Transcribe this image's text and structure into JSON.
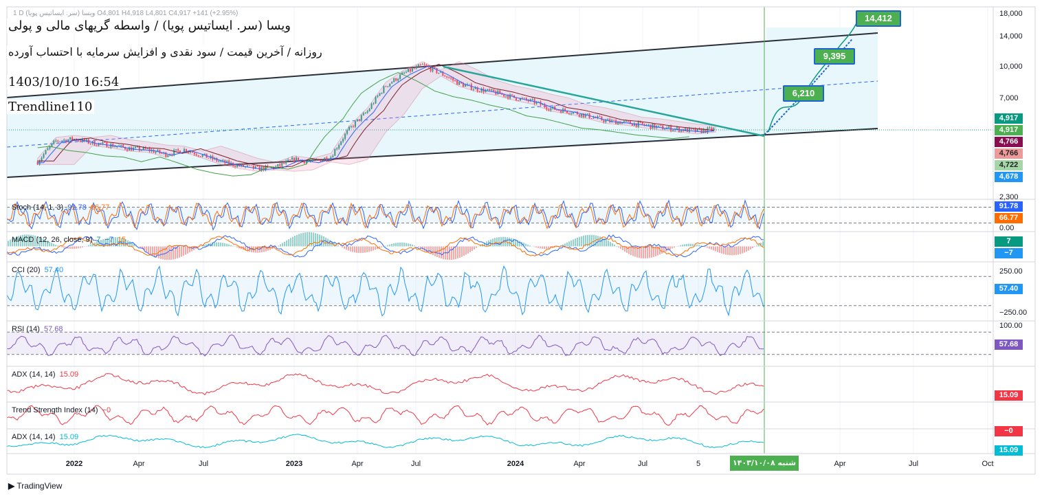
{
  "header": {
    "symbol_row": "1  D  ویسا (سر. ایساتیس پویا)  O4,801  H4,918  L4,801  C4,917  +141 (+2.95%)",
    "title_fa": "ویسا (سر. ایساتیس پویا) / واسطه گریهای مالی و پولی",
    "subtitle_fa": "روزانه / آخرین قیمت / سود نقدی و افزایش سرمایه با احتساب آورده",
    "datetime": "1403/10/10 16:54",
    "signature": "Trendline110"
  },
  "colors": {
    "channel_fill": "#e8f7fb",
    "candle_up": "#089981",
    "candle_down": "#f23645",
    "trendline": "#26a69a",
    "ma": "#7b1f2a",
    "stoch_k": "#2962ff",
    "stoch_d": "#ff6d00",
    "cci": "#2196f3",
    "rsi": "#7e57c2",
    "adx": "#f23645",
    "adx2": "#00bcd4"
  },
  "chart_data": [
    {
      "type": "candlestick",
      "pane": "price",
      "x_ticks": [
        "2022",
        "Apr",
        "Jul",
        "2023",
        "Apr",
        "Jul",
        "2024",
        "Apr",
        "Jul",
        "5",
        "Apr",
        "Jul",
        "Oct"
      ],
      "current_date_label": "شنبه ۱۴۰۳/۱۰/۰۸",
      "y_ticks": [
        2300,
        7000,
        10000,
        14000,
        18000
      ],
      "y_ticks_text": [
        "2,300",
        "7,000",
        "10,000",
        "14,000",
        "18,000"
      ],
      "last_close": 4917,
      "ohlc_last": {
        "open": 4801,
        "high": 4918,
        "low": 4801,
        "close": 4917,
        "change": 141,
        "change_pct": 2.95
      },
      "price_tags": [
        {
          "text": "4,917",
          "color": "#089981"
        },
        {
          "text": "4,917",
          "color": "#4caf50"
        },
        {
          "text": "4,766",
          "color": "#880e4f"
        },
        {
          "text": "4,766",
          "color": "#ef9a9a"
        },
        {
          "text": "4,722",
          "color": "#a5d6a7"
        },
        {
          "text": "4,678",
          "color": "#2196f3"
        }
      ],
      "targets": [
        {
          "value": 6210,
          "label": "6,210"
        },
        {
          "value": 9395,
          "label": "9,395"
        },
        {
          "value": 14412,
          "label": "14,412"
        }
      ],
      "approx_close_series": [
        {
          "date": "2021-11",
          "close": 3400
        },
        {
          "date": "2021-12",
          "close": 4300
        },
        {
          "date": "2022-01",
          "close": 4400
        },
        {
          "date": "2022-02",
          "close": 4200
        },
        {
          "date": "2022-03",
          "close": 4100
        },
        {
          "date": "2022-04",
          "close": 3950
        },
        {
          "date": "2022-05",
          "close": 3900
        },
        {
          "date": "2022-06",
          "close": 3700
        },
        {
          "date": "2022-07",
          "close": 3900
        },
        {
          "date": "2022-08",
          "close": 3650
        },
        {
          "date": "2022-09",
          "close": 3400
        },
        {
          "date": "2022-10",
          "close": 3250
        },
        {
          "date": "2022-11",
          "close": 3150
        },
        {
          "date": "2022-12",
          "close": 3200
        },
        {
          "date": "2023-01",
          "close": 3500
        },
        {
          "date": "2023-02",
          "close": 3400
        },
        {
          "date": "2023-03",
          "close": 3600
        },
        {
          "date": "2023-04",
          "close": 4900
        },
        {
          "date": "2023-05",
          "close": 6000
        },
        {
          "date": "2023-06",
          "close": 8000
        },
        {
          "date": "2023-07",
          "close": 9200
        },
        {
          "date": "2023-08",
          "close": 10100
        },
        {
          "date": "2023-09",
          "close": 9200
        },
        {
          "date": "2023-10",
          "close": 8200
        },
        {
          "date": "2023-11",
          "close": 7700
        },
        {
          "date": "2023-12",
          "close": 7400
        },
        {
          "date": "2024-01",
          "close": 7000
        },
        {
          "date": "2024-02",
          "close": 6700
        },
        {
          "date": "2024-03",
          "close": 6200
        },
        {
          "date": "2024-04",
          "close": 6000
        },
        {
          "date": "2024-05",
          "close": 5700
        },
        {
          "date": "2024-06",
          "close": 5400
        },
        {
          "date": "2024-07",
          "close": 5300
        },
        {
          "date": "2024-08",
          "close": 5150
        },
        {
          "date": "2024-09",
          "close": 5000
        },
        {
          "date": "2024-10",
          "close": 4900
        },
        {
          "date": "2024-11",
          "close": 4800
        },
        {
          "date": "2024-12",
          "close": 4917
        }
      ]
    },
    {
      "type": "line",
      "pane": "stoch",
      "name": "Stoch (14, 1, 3)",
      "values": [
        91.78,
        66.77
      ],
      "values_text": [
        "91.78",
        "66.77"
      ],
      "y_ticks": [
        0.0
      ],
      "y_ticks_text": [
        "0.00"
      ],
      "bands": [
        20,
        80
      ]
    },
    {
      "type": "bar",
      "pane": "macd",
      "name": "MACD (12, 26, close, 9)",
      "values": [
        7,
        -7,
        15
      ],
      "values_text": [
        "7",
        "−7",
        "15"
      ],
      "tags": [
        "7",
        "−7"
      ]
    },
    {
      "type": "line",
      "pane": "cci",
      "name": "CCI (20)",
      "values": [
        57.4
      ],
      "values_text": [
        "57.40"
      ],
      "y_ticks": [
        250.0,
        -250.0
      ],
      "y_ticks_text": [
        "250.00",
        "−250.00"
      ],
      "bands": [
        100,
        -100
      ]
    },
    {
      "type": "line",
      "pane": "rsi",
      "name": "RSI (14)",
      "values": [
        57.68
      ],
      "values_text": [
        "57.68"
      ],
      "y_ticks": [
        100.0
      ],
      "y_ticks_text": [
        "100.00"
      ],
      "bands": [
        30,
        70
      ]
    },
    {
      "type": "line",
      "pane": "adx",
      "name": "ADX (14, 14)",
      "values": [
        15.09
      ],
      "values_text": [
        "15.09"
      ]
    },
    {
      "type": "line",
      "pane": "tsi",
      "name": "Trend Strength Index (14)",
      "values": [
        0
      ],
      "values_text": [
        "−0"
      ]
    },
    {
      "type": "line",
      "pane": "adx2",
      "name": "ADX (14, 14)",
      "values": [
        15.09
      ],
      "values_text": [
        "15.09"
      ]
    }
  ],
  "footer": {
    "brand": "TradingView"
  }
}
